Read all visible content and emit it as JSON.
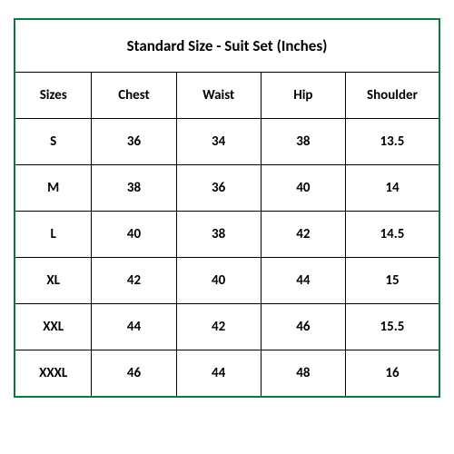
{
  "table": {
    "type": "table",
    "title": "Standard Size - Suit Set (Inches)",
    "title_fontsize": 17,
    "header_fontsize": 15,
    "cell_fontsize": 15,
    "font_weight": "bold",
    "text_color": "#000000",
    "background_color": "#ffffff",
    "outer_border_color": "#0b7a3e",
    "outer_border_width": 2,
    "inner_border_color": "#000000",
    "inner_border_width": 1,
    "columns": [
      "Sizes",
      "Chest",
      "Waist",
      "Hip",
      "Shoulder"
    ],
    "column_widths_pct": [
      18,
      20,
      20,
      20,
      22
    ],
    "rows": [
      [
        "S",
        "36",
        "34",
        "38",
        "13.5"
      ],
      [
        "M",
        "38",
        "36",
        "40",
        "14"
      ],
      [
        "L",
        "40",
        "38",
        "42",
        "14.5"
      ],
      [
        "XL",
        "42",
        "40",
        "44",
        "15"
      ],
      [
        "XXL",
        "44",
        "42",
        "46",
        "15.5"
      ],
      [
        "XXXL",
        "46",
        "44",
        "48",
        "16"
      ]
    ]
  }
}
